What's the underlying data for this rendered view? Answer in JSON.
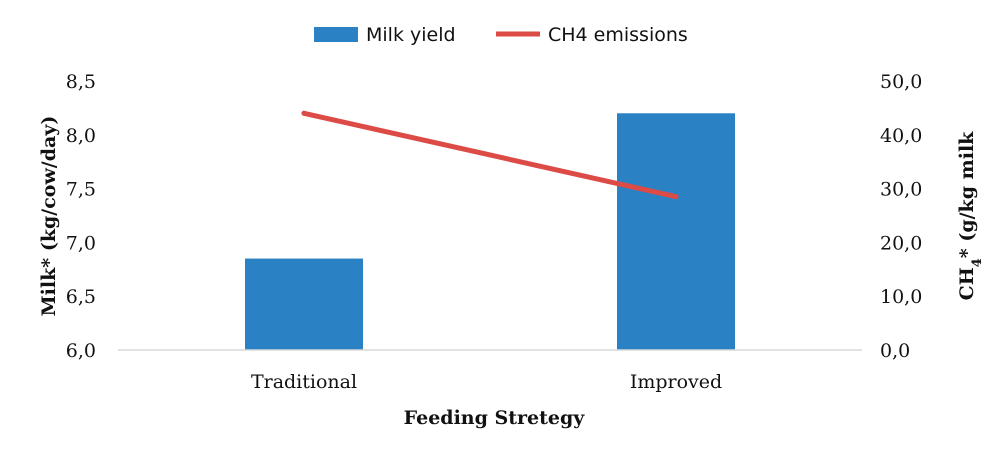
{
  "chart_data": {
    "type": "bar",
    "categories": [
      "Traditional",
      "Improved"
    ],
    "series": [
      {
        "name": "Milk yield",
        "type": "bar",
        "axis": "left",
        "values": [
          6.85,
          8.2
        ]
      },
      {
        "name": "CH4 emissions",
        "type": "line",
        "axis": "right",
        "values": [
          44.0,
          28.5
        ]
      }
    ],
    "xlabel": "Feeding Stretegy",
    "ylabel": "Milk* (kg/cow/day)",
    "y2label": {
      "prefix": "CH",
      "subscript": "4",
      "suffix": "*  (g/kg milk"
    },
    "ylim": [
      6.0,
      8.5
    ],
    "y2lim": [
      0,
      50
    ],
    "yticks": [
      "6,0",
      "6,5",
      "7,0",
      "7,5",
      "8,0",
      "8,5"
    ],
    "y2ticks": [
      "0,0",
      "10,0",
      "20,0",
      "30,0",
      "40,0",
      "50,0"
    ],
    "grid": false,
    "legend_position": "top",
    "colors": {
      "bar": "#2a82c4",
      "line": "#dc4b46",
      "axis": "#d9d9d9"
    }
  }
}
